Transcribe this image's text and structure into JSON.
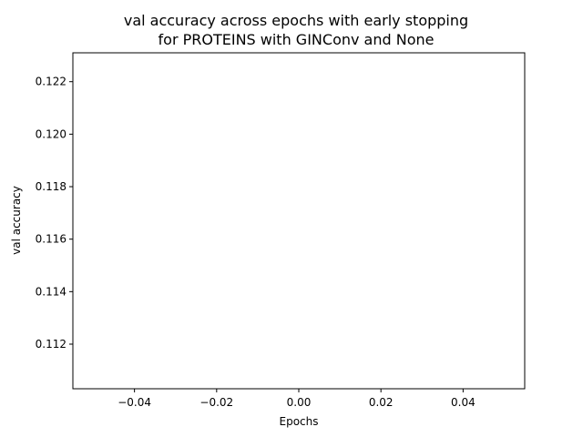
{
  "chart_data": {
    "type": "line",
    "title_lines": [
      "val accuracy across epochs with early stopping",
      "for PROTEINS with GINConv and None"
    ],
    "xlabel": "Epochs",
    "ylabel": "val accuracy",
    "xlim": [
      -0.055,
      0.055
    ],
    "ylim": [
      0.1103,
      0.1231
    ],
    "x_ticks": [
      {
        "value": -0.04,
        "label": "−0.04"
      },
      {
        "value": -0.02,
        "label": "−0.02"
      },
      {
        "value": 0.0,
        "label": "0.00"
      },
      {
        "value": 0.02,
        "label": "0.02"
      },
      {
        "value": 0.04,
        "label": "0.04"
      }
    ],
    "y_ticks": [
      {
        "value": 0.112,
        "label": "0.112"
      },
      {
        "value": 0.114,
        "label": "0.114"
      },
      {
        "value": 0.116,
        "label": "0.116"
      },
      {
        "value": 0.118,
        "label": "0.118"
      },
      {
        "value": 0.12,
        "label": "0.120"
      },
      {
        "value": 0.122,
        "label": "0.122"
      }
    ],
    "series": [
      {
        "x": [],
        "values": []
      }
    ],
    "grid": false,
    "legend": "none"
  }
}
